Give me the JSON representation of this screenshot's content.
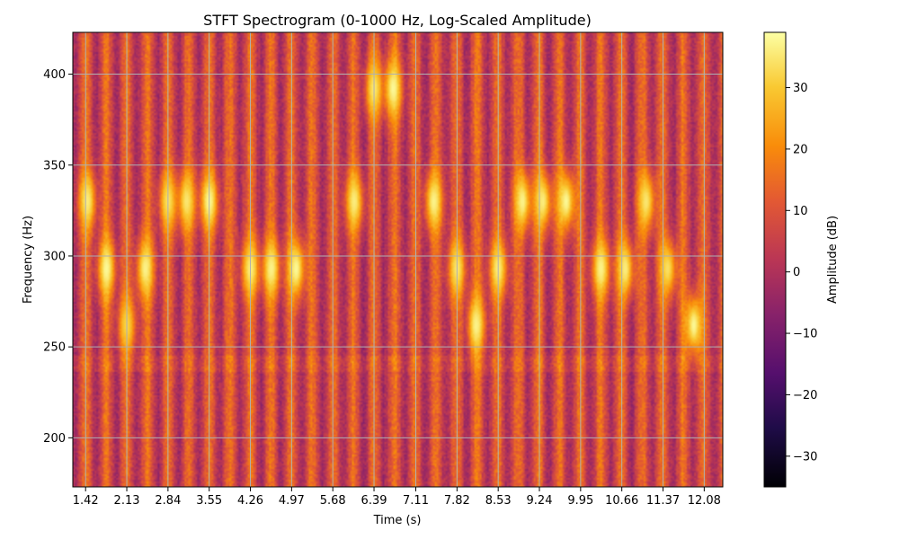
{
  "chart_data": {
    "type": "heatmap",
    "title": "STFT Spectrogram (0-1000 Hz, Log-Scaled Amplitude)",
    "xlabel": "Time (s)",
    "ylabel": "Frequency (Hz)",
    "xlim": [
      1.2,
      12.4
    ],
    "ylim": [
      173,
      423
    ],
    "x_ticks": [
      1.42,
      2.13,
      2.84,
      3.55,
      4.26,
      4.97,
      5.68,
      6.39,
      7.11,
      7.82,
      8.53,
      9.24,
      9.95,
      10.66,
      11.37,
      12.08
    ],
    "x_tick_labels": [
      "1.42",
      "2.13",
      "2.84",
      "3.55",
      "4.26",
      "4.97",
      "5.68",
      "6.39",
      "7.11",
      "7.82",
      "8.53",
      "9.24",
      "9.95",
      "10.66",
      "11.37",
      "12.08"
    ],
    "y_ticks": [
      200,
      250,
      300,
      350,
      400
    ],
    "y_tick_labels": [
      "200",
      "250",
      "300",
      "350",
      "400"
    ],
    "grid": true,
    "colormap": "inferno",
    "colorbar": {
      "label": "Amplitude (dB)",
      "range": [
        -35,
        39
      ],
      "ticks": [
        -30,
        -20,
        -10,
        0,
        10,
        20,
        30
      ],
      "tick_labels": [
        "−30",
        "−20",
        "−10",
        "0",
        "10",
        "20",
        "30"
      ]
    },
    "hotspots": [
      {
        "t": 1.45,
        "f": 330,
        "db": 36
      },
      {
        "t": 1.78,
        "f": 293,
        "db": 38
      },
      {
        "t": 2.13,
        "f": 262,
        "db": 32
      },
      {
        "t": 2.45,
        "f": 293,
        "db": 37
      },
      {
        "t": 2.84,
        "f": 330,
        "db": 34
      },
      {
        "t": 3.16,
        "f": 330,
        "db": 35
      },
      {
        "t": 3.55,
        "f": 330,
        "db": 38
      },
      {
        "t": 4.26,
        "f": 293,
        "db": 36
      },
      {
        "t": 4.62,
        "f": 293,
        "db": 37
      },
      {
        "t": 5.05,
        "f": 293,
        "db": 38
      },
      {
        "t": 6.05,
        "f": 330,
        "db": 36
      },
      {
        "t": 6.39,
        "f": 392,
        "db": 35
      },
      {
        "t": 6.72,
        "f": 392,
        "db": 38
      },
      {
        "t": 7.42,
        "f": 330,
        "db": 37
      },
      {
        "t": 7.82,
        "f": 293,
        "db": 35
      },
      {
        "t": 8.15,
        "f": 262,
        "db": 37
      },
      {
        "t": 8.53,
        "f": 293,
        "db": 36
      },
      {
        "t": 8.95,
        "f": 330,
        "db": 37
      },
      {
        "t": 9.3,
        "f": 330,
        "db": 36
      },
      {
        "t": 9.7,
        "f": 330,
        "db": 38
      },
      {
        "t": 10.3,
        "f": 293,
        "db": 37
      },
      {
        "t": 10.72,
        "f": 293,
        "db": 36
      },
      {
        "t": 11.08,
        "f": 330,
        "db": 35
      },
      {
        "t": 11.45,
        "f": 293,
        "db": 34
      },
      {
        "t": 11.9,
        "f": 262,
        "db": 38
      }
    ]
  }
}
